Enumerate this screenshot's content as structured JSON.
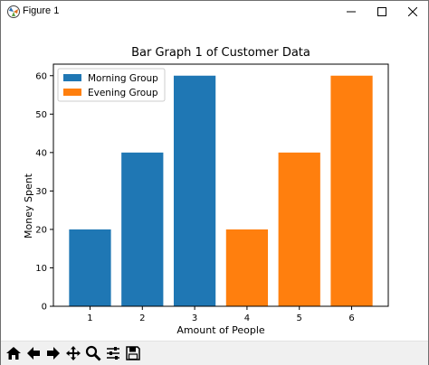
{
  "window": {
    "title": "Figure 1"
  },
  "toolbar": {
    "tools": [
      "home-icon",
      "back-icon",
      "forward-icon",
      "pan-icon",
      "zoom-icon",
      "configure-subplots-icon",
      "save-icon"
    ]
  },
  "colors": {
    "morning": "#1f77b4",
    "evening": "#ff7f0e"
  },
  "chart_data": {
    "type": "bar",
    "title": "Bar Graph 1 of Customer Data",
    "xlabel": "Amount of People",
    "ylabel": "Money Spent",
    "ylim": [
      0,
      63
    ],
    "yticks": [
      0,
      10,
      20,
      30,
      40,
      50,
      60
    ],
    "xticks": [
      1,
      2,
      3,
      4,
      5,
      6
    ],
    "legend_position": "top-left",
    "series": [
      {
        "name": "Morning Group",
        "color": "#1f77b4",
        "x": [
          1,
          2,
          3
        ],
        "values": [
          20,
          40,
          60
        ]
      },
      {
        "name": "Evening Group",
        "color": "#ff7f0e",
        "x": [
          4,
          5,
          6
        ],
        "values": [
          20,
          40,
          60
        ]
      }
    ]
  }
}
